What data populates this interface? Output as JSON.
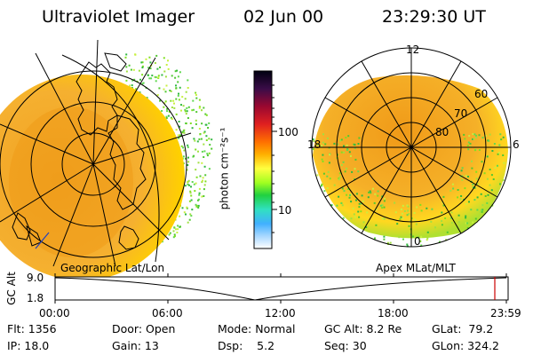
{
  "header": {
    "instrument": "Ultraviolet Imager",
    "date": "02 Jun 00",
    "time": "23:29:30 UT"
  },
  "colorbar": {
    "unit_label": "photon cm⁻²s⁻¹",
    "ticks": [
      "100",
      "10"
    ],
    "colors": [
      "#000000",
      "#5a1040",
      "#b00028",
      "#e02020",
      "#ff7800",
      "#ffc000",
      "#ffff40",
      "#a0ff20",
      "#20d040",
      "#30e0c0",
      "#40b0ff",
      "#a0d0ff",
      "#ffffff"
    ]
  },
  "geo_panel": {
    "label": "Geographic Lat/Lon"
  },
  "mag_panel": {
    "label": "Apex MLat/MLT",
    "mlt_labels": {
      "top": "12",
      "left": "18",
      "right": "6",
      "bottom": "0"
    },
    "lat_labels": [
      "60",
      "70",
      "80"
    ]
  },
  "altitude_plot": {
    "ylabel": "GC Alt",
    "y_ticks": [
      "9.0",
      "1.8"
    ],
    "x_ticks": [
      "00:00",
      "06:00",
      "12:00",
      "18:00",
      "23:59"
    ],
    "marker_color": "#cc0000"
  },
  "info": {
    "flt": "Flt: 1356",
    "ip": "IP: 18.0",
    "door": "Door: Open",
    "gain": "Gain: 13",
    "mode": "Mode: Normal",
    "dsp": "Dsp:    5.2",
    "gcalt": "GC Alt: 8.2 Re",
    "seq": "Seq: 30",
    "glat": "GLat:  79.2",
    "glon": "GLon: 324.2"
  }
}
